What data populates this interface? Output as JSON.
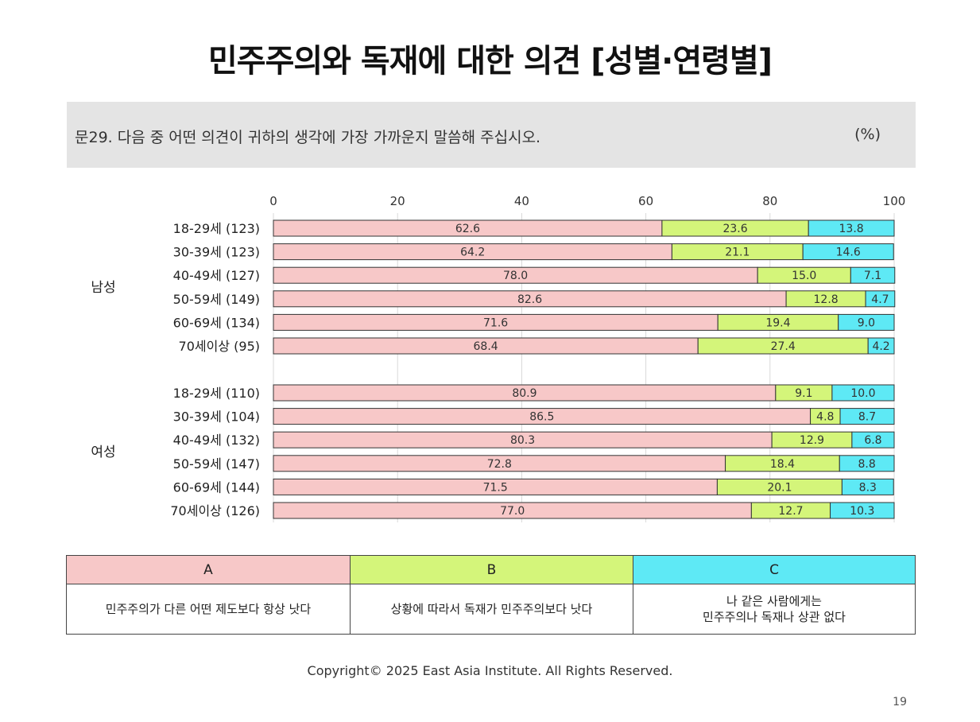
{
  "title": "민주주의와 독재에 대한 의견 [성별·연령별]",
  "question": {
    "text": "문29. 다음 중 어떤 의견이 귀하의 생각에 가장 가까운지 말씀해 주십시오.",
    "unit": "(%)"
  },
  "colors": {
    "A": "#f7c8c8",
    "B": "#d4f57a",
    "C": "#5ee9f5"
  },
  "chart_data": {
    "type": "bar",
    "orientation": "horizontal",
    "stacked": true,
    "xlim": [
      0,
      100
    ],
    "xticks": [
      "0",
      "20",
      "40",
      "60",
      "80",
      "100"
    ],
    "groups": [
      {
        "name": "남성",
        "rows": [
          {
            "label": "18-29세 (123)",
            "values": [
              62.6,
              23.6,
              13.8
            ],
            "value_labels": [
              "62.6",
              "23.6",
              "13.8"
            ]
          },
          {
            "label": "30-39세 (123)",
            "values": [
              64.2,
              21.1,
              14.6
            ],
            "value_labels": [
              "64.2",
              "21.1",
              "14.6"
            ]
          },
          {
            "label": "40-49세 (127)",
            "values": [
              78.0,
              15.0,
              7.1
            ],
            "value_labels": [
              "78.0",
              "15.0",
              "7.1"
            ]
          },
          {
            "label": "50-59세 (149)",
            "values": [
              82.6,
              12.8,
              4.7
            ],
            "value_labels": [
              "82.6",
              "12.8",
              "4.7"
            ]
          },
          {
            "label": "60-69세 (134)",
            "values": [
              71.6,
              19.4,
              9.0
            ],
            "value_labels": [
              "71.6",
              "19.4",
              "9.0"
            ]
          },
          {
            "label": "70세이상 (95)",
            "values": [
              68.4,
              27.4,
              4.2
            ],
            "value_labels": [
              "68.4",
              "27.4",
              "4.2"
            ]
          }
        ]
      },
      {
        "name": "여성",
        "rows": [
          {
            "label": "18-29세 (110)",
            "values": [
              80.9,
              9.1,
              10.0
            ],
            "value_labels": [
              "80.9",
              "9.1",
              "10.0"
            ]
          },
          {
            "label": "30-39세 (104)",
            "values": [
              86.5,
              4.8,
              8.7
            ],
            "value_labels": [
              "86.5",
              "4.8",
              "8.7"
            ]
          },
          {
            "label": "40-49세 (132)",
            "values": [
              80.3,
              12.9,
              6.8
            ],
            "value_labels": [
              "80.3",
              "12.9",
              "6.8"
            ]
          },
          {
            "label": "50-59세 (147)",
            "values": [
              72.8,
              18.4,
              8.8
            ],
            "value_labels": [
              "72.8",
              "18.4",
              "8.8"
            ]
          },
          {
            "label": "60-69세 (144)",
            "values": [
              71.5,
              20.1,
              8.3
            ],
            "value_labels": [
              "71.5",
              "20.1",
              "8.3"
            ]
          },
          {
            "label": "70세이상 (126)",
            "values": [
              77.0,
              12.7,
              10.3
            ],
            "value_labels": [
              "77.0",
              "12.7",
              "10.3"
            ]
          }
        ]
      }
    ],
    "series": [
      "A",
      "B",
      "C"
    ]
  },
  "legend": [
    {
      "key": "A",
      "text": "민주주의가 다른 어떤 제도보다 항상 낫다"
    },
    {
      "key": "B",
      "text": "상황에 따라서 독재가 민주주의보다 낫다"
    },
    {
      "key": "C",
      "text": "나 같은 사람에게는\n민주주의나 독재나 상관 없다"
    }
  ],
  "footer": {
    "copyright": "Copyright© 2025 East Asia Institute. All Rights Reserved.",
    "page_number": "19"
  }
}
